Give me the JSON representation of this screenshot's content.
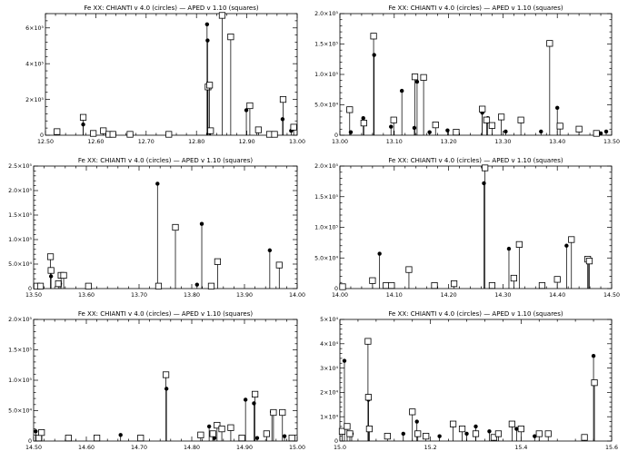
{
  "figure": {
    "background": "#ffffff",
    "foreground": "#000000"
  },
  "chart_data": [
    {
      "type": "scatter",
      "title": "Fe XX:  CHIANTI v 4.0 (circles) — APED v 1.10 (squares)",
      "xlim": [
        12.5,
        13.0
      ],
      "ylim": [
        0,
        680000
      ],
      "xticks": [
        12.5,
        12.6,
        12.7,
        12.8,
        12.9,
        13.0
      ],
      "xtick_labels": [
        "12.50",
        "12.60",
        "12.70",
        "12.80",
        "12.90",
        "13.00"
      ],
      "yticks": [
        0,
        200000,
        400000,
        600000
      ],
      "ytick_labels": [
        "0",
        "2×10⁵",
        "4×10⁵",
        "6×10⁵"
      ],
      "series": [
        {
          "name": "CHIANTI v 4.0",
          "marker": "circle",
          "x": [
            12.575,
            12.821,
            12.822,
            12.827,
            12.899,
            12.971,
            12.988
          ],
          "y": [
            60000,
            620000,
            530000,
            20000,
            140000,
            90000,
            25000
          ]
        },
        {
          "name": "APED v 1.10",
          "marker": "square",
          "x": [
            12.523,
            12.575,
            12.595,
            12.615,
            12.626,
            12.634,
            12.668,
            12.745,
            12.823,
            12.826,
            12.828,
            12.851,
            12.868,
            12.906,
            12.923,
            12.945,
            12.955,
            12.972,
            12.993
          ],
          "y": [
            20000,
            100000,
            10000,
            25000,
            5000,
            5000,
            5000,
            5000,
            270000,
            280000,
            25000,
            670000,
            550000,
            165000,
            30000,
            5000,
            5000,
            200000,
            45000
          ]
        }
      ]
    },
    {
      "type": "scatter",
      "title": "Fe XX:  CHIANTI v 4.0 (circles) — APED v 1.10 (squares)",
      "xlim": [
        13.0,
        13.5
      ],
      "ylim": [
        0,
        200000
      ],
      "xticks": [
        13.0,
        13.1,
        13.2,
        13.3,
        13.4,
        13.5
      ],
      "xtick_labels": [
        "13.00",
        "13.10",
        "13.20",
        "13.30",
        "13.40",
        "13.50"
      ],
      "yticks": [
        0,
        50000,
        100000,
        150000,
        200000
      ],
      "ytick_labels": [
        "0",
        "5.0×10⁴",
        "1.0×10⁵",
        "1.5×10⁵",
        "2.0×10⁵"
      ],
      "series": [
        {
          "name": "CHIANTI v 4.0",
          "marker": "circle",
          "x": [
            13.02,
            13.043,
            13.063,
            13.094,
            13.114,
            13.137,
            13.142,
            13.165,
            13.198,
            13.262,
            13.272,
            13.305,
            13.37,
            13.4,
            13.48,
            13.49
          ],
          "y": [
            5000,
            28000,
            132000,
            14000,
            73000,
            12000,
            88000,
            5000,
            8000,
            37000,
            28000,
            6000,
            6000,
            45000,
            3000,
            6000
          ]
        },
        {
          "name": "APED v 1.10",
          "marker": "square",
          "x": [
            13.018,
            13.044,
            13.062,
            13.099,
            13.138,
            13.154,
            13.176,
            13.214,
            13.262,
            13.27,
            13.28,
            13.297,
            13.333,
            13.386,
            13.405,
            13.44,
            13.472
          ],
          "y": [
            42000,
            20000,
            163000,
            25000,
            96000,
            95000,
            17000,
            5000,
            43000,
            25000,
            16000,
            30000,
            25000,
            151000,
            15000,
            10000,
            3000
          ]
        }
      ]
    },
    {
      "type": "scatter",
      "title": "Fe XX:  CHIANTI v 4.0 (circles) — APED v 1.10 (squares)",
      "xlim": [
        13.5,
        14.0
      ],
      "ylim": [
        0,
        250000
      ],
      "xticks": [
        13.5,
        13.6,
        13.7,
        13.8,
        13.9,
        14.0
      ],
      "xtick_labels": [
        "13.50",
        "13.60",
        "13.70",
        "13.80",
        "13.90",
        "14.00"
      ],
      "yticks": [
        0,
        50000,
        100000,
        150000,
        200000,
        250000
      ],
      "ytick_labels": [
        "0",
        "5.0×10⁴",
        "1.0×10⁵",
        "1.5×10⁵",
        "2.0×10⁵",
        "2.5×10⁵"
      ],
      "series": [
        {
          "name": "CHIANTI v 4.0",
          "marker": "circle",
          "x": [
            13.533,
            13.55,
            13.735,
            13.81,
            13.819,
            13.948
          ],
          "y": [
            25000,
            10000,
            214000,
            8000,
            132000,
            78000
          ]
        },
        {
          "name": "APED v 1.10",
          "marker": "square",
          "x": [
            13.506,
            13.513,
            13.532,
            13.533,
            13.547,
            13.552,
            13.557,
            13.604,
            13.737,
            13.769,
            13.837,
            13.849,
            13.966
          ],
          "y": [
            5000,
            5000,
            65000,
            37000,
            10000,
            27000,
            27000,
            5000,
            5000,
            125000,
            5000,
            55000,
            48000
          ]
        }
      ]
    },
    {
      "type": "scatter",
      "title": "Fe XX:  CHIANTI v 4.0 (circles) — APED v 1.10 (squares)",
      "xlim": [
        14.0,
        14.5
      ],
      "ylim": [
        0,
        200000
      ],
      "xticks": [
        14.0,
        14.1,
        14.2,
        14.3,
        14.4,
        14.5
      ],
      "xtick_labels": [
        "14.00",
        "14.10",
        "14.20",
        "14.30",
        "14.40",
        "14.50"
      ],
      "yticks": [
        0,
        50000,
        100000,
        150000,
        200000
      ],
      "ytick_labels": [
        "0",
        "5.0×10⁴",
        "1.0×10⁵",
        "1.5×10⁵",
        "2.0×10⁵"
      ],
      "series": [
        {
          "name": "CHIANTI v 4.0",
          "marker": "circle",
          "x": [
            14.073,
            14.265,
            14.311,
            14.417,
            14.457
          ],
          "y": [
            57000,
            172000,
            65000,
            70000,
            43000
          ]
        },
        {
          "name": "APED v 1.10",
          "marker": "square",
          "x": [
            14.005,
            14.06,
            14.085,
            14.095,
            14.127,
            14.174,
            14.21,
            14.267,
            14.28,
            14.32,
            14.33,
            14.372,
            14.4,
            14.426,
            14.456,
            14.459
          ],
          "y": [
            3000,
            13000,
            5000,
            5000,
            31000,
            5000,
            8000,
            197000,
            5000,
            17000,
            72000,
            5000,
            15000,
            80000,
            48000,
            45000
          ]
        }
      ]
    },
    {
      "type": "scatter",
      "title": "Fe XX:  CHIANTI v 4.0 (circles) — APED v 1.10 (squares)",
      "xlim": [
        14.5,
        15.0
      ],
      "ylim": [
        0,
        200000
      ],
      "xticks": [
        14.5,
        14.6,
        14.7,
        14.8,
        14.9,
        15.0
      ],
      "xtick_labels": [
        "14.50",
        "14.60",
        "14.70",
        "14.80",
        "14.90",
        "15.00"
      ],
      "yticks": [
        0,
        50000,
        100000,
        150000,
        200000
      ],
      "ytick_labels": [
        "0",
        "5.0×10⁴",
        "1.0×10⁵",
        "1.5×10⁵",
        "2.0×10⁵"
      ],
      "series": [
        {
          "name": "CHIANTI v 4.0",
          "marker": "circle",
          "x": [
            14.504,
            14.665,
            14.752,
            14.833,
            14.843,
            14.902,
            14.918,
            14.924,
            14.952,
            14.976
          ],
          "y": [
            16000,
            10000,
            86000,
            24000,
            5000,
            68000,
            62000,
            5000,
            48000,
            8000
          ]
        },
        {
          "name": "APED v 1.10",
          "marker": "square",
          "x": [
            14.51,
            14.515,
            14.566,
            14.62,
            14.703,
            14.751,
            14.817,
            14.84,
            14.848,
            14.857,
            14.874,
            14.895,
            14.92,
            14.942,
            14.955,
            14.972,
            14.99
          ],
          "y": [
            5000,
            14000,
            5000,
            5000,
            5000,
            109000,
            10000,
            12000,
            26000,
            20000,
            22000,
            5000,
            77000,
            12000,
            47000,
            47000,
            5000
          ]
        }
      ]
    },
    {
      "type": "scatter",
      "title": "Fe XX:  CHIANTI v 4.0 (circles) — APED v 1.10 (squares)",
      "xlim": [
        15.0,
        15.6
      ],
      "ylim": [
        0,
        50000
      ],
      "xticks": [
        15.0,
        15.2,
        15.4,
        15.6
      ],
      "xtick_labels": [
        "15.0",
        "15.2",
        "15.4",
        "15.6"
      ],
      "yticks": [
        0,
        10000,
        20000,
        30000,
        40000,
        50000
      ],
      "ytick_labels": [
        "0",
        "1×10⁴",
        "2×10⁴",
        "3×10⁴",
        "4×10⁴",
        "5×10⁴"
      ],
      "series": [
        {
          "name": "CHIANTI v 4.0",
          "marker": "circle",
          "x": [
            15.01,
            15.026,
            15.063,
            15.14,
            15.17,
            15.22,
            15.28,
            15.3,
            15.33,
            15.39,
            15.43,
            15.56
          ],
          "y": [
            33000,
            3000,
            17000,
            3000,
            8000,
            2000,
            3000,
            6000,
            4000,
            5000,
            2000,
            35000
          ]
        },
        {
          "name": "APED v 1.10",
          "marker": "square",
          "x": [
            15.005,
            15.016,
            15.022,
            15.062,
            15.063,
            15.065,
            15.105,
            15.16,
            15.172,
            15.19,
            15.25,
            15.27,
            15.3,
            15.34,
            15.35,
            15.38,
            15.4,
            15.44,
            15.46,
            15.54,
            15.562
          ],
          "y": [
            4000,
            6000,
            3000,
            41000,
            18000,
            5000,
            2000,
            12000,
            3000,
            2000,
            7000,
            5000,
            3000,
            1500,
            3000,
            7000,
            5000,
            3000,
            3000,
            1500,
            24000
          ]
        }
      ]
    }
  ]
}
